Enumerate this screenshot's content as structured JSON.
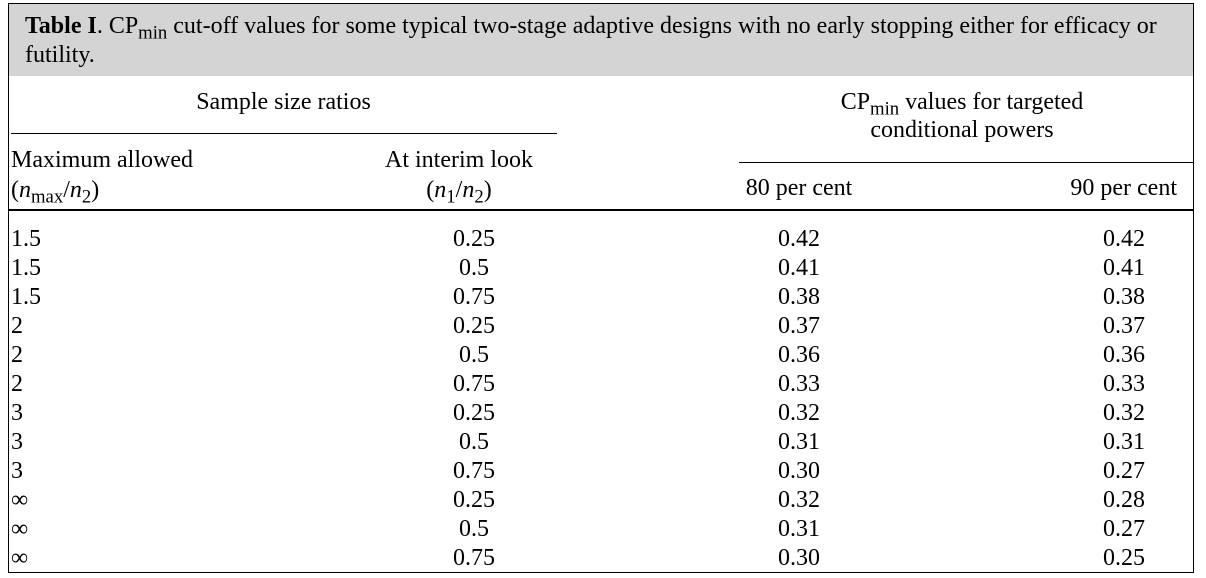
{
  "table": {
    "label": "Table I",
    "caption_prefix": ". CP",
    "caption_sub": "min",
    "caption_rest": " cut-off values for some typical two-stage adaptive designs with no early stopping either for efficacy or futility.",
    "group_left": "Sample size ratios",
    "group_right_cp": "CP",
    "group_right_sub": "min",
    "group_right_line1_rest": " values for targeted",
    "group_right_line2": "conditional powers",
    "col1_title": "Maximum allowed",
    "col1_sub_open": "(",
    "col1_n": "n",
    "col1_sub1": "max",
    "col1_slash": "/",
    "col1_n2": "n",
    "col1_sub2": "2",
    "col1_close": ")",
    "col2_title": "At interim look",
    "col2_open": "(",
    "col2_n": "n",
    "col2_sub1": "1",
    "col2_slash": "/",
    "col2_n2": "n",
    "col2_sub2": "2",
    "col2_close": ")",
    "col3_title": "80 per cent",
    "col4_title": "90 per cent",
    "rows": [
      [
        "1.5",
        "0.25",
        "0.42",
        "0.42"
      ],
      [
        "1.5",
        "0.5",
        "0.41",
        "0.41"
      ],
      [
        "1.5",
        "0.75",
        "0.38",
        "0.38"
      ],
      [
        "2",
        "0.25",
        "0.37",
        "0.37"
      ],
      [
        "2",
        "0.5",
        "0.36",
        "0.36"
      ],
      [
        "2",
        "0.75",
        "0.33",
        "0.33"
      ],
      [
        "3",
        "0.25",
        "0.32",
        "0.32"
      ],
      [
        "3",
        "0.5",
        "0.31",
        "0.31"
      ],
      [
        "3",
        "0.75",
        "0.30",
        "0.27"
      ],
      [
        "∞",
        "0.25",
        "0.32",
        "0.28"
      ],
      [
        "∞",
        "0.5",
        "0.31",
        "0.27"
      ],
      [
        "∞",
        "0.75",
        "0.30",
        "0.25"
      ]
    ]
  }
}
